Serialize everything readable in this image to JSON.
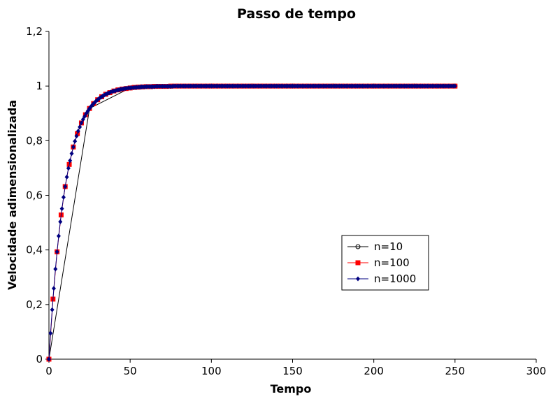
{
  "chart_data": {
    "type": "line",
    "title": "Passo de tempo",
    "xlabel": "Tempo",
    "ylabel": "Velocidade adimensionalizada",
    "xlim": [
      0,
      300
    ],
    "ylim": [
      0,
      1.2
    ],
    "xticks": [
      0,
      50,
      100,
      150,
      200,
      250,
      300
    ],
    "xtick_labels": [
      "0",
      "50",
      "100",
      "150",
      "200",
      "250",
      "300"
    ],
    "yticks": [
      0,
      0.2,
      0.4,
      0.6,
      0.8,
      1.0,
      1.2
    ],
    "ytick_labels": [
      "0",
      "0,2",
      "0,4",
      "0,6",
      "0,8",
      "1",
      "1,2"
    ],
    "grid": false,
    "legend_position": "center-right",
    "series": [
      {
        "name": "n=10",
        "color": "#000000",
        "marker": "circle-open",
        "x": [
          0,
          25,
          50,
          75,
          100,
          125,
          150,
          175,
          200,
          225,
          250
        ],
        "y": [
          0,
          0.918,
          0.993,
          0.999,
          1.0,
          1.0,
          1.0,
          1.0,
          1.0,
          1.0,
          1.0
        ]
      },
      {
        "name": "n=100",
        "color": "#ff0000",
        "marker": "square-filled",
        "x": [
          0,
          2.5,
          5,
          7.5,
          10,
          12.5,
          15,
          17.5,
          20,
          22.5,
          25,
          27.5,
          30,
          32.5,
          35,
          37.5,
          40,
          42.5,
          45,
          47.5,
          50,
          52.5,
          55,
          57.5,
          60,
          62.5,
          65,
          67.5,
          70,
          72.5,
          75,
          77.5,
          80,
          82.5,
          85,
          87.5,
          90,
          92.5,
          95,
          97.5,
          100,
          102.5,
          105,
          107.5,
          110,
          112.5,
          115,
          117.5,
          120,
          122.5,
          125,
          127.5,
          130,
          132.5,
          135,
          137.5,
          140,
          142.5,
          145,
          147.5,
          150,
          152.5,
          155,
          157.5,
          160,
          162.5,
          165,
          167.5,
          170,
          172.5,
          175,
          177.5,
          180,
          182.5,
          185,
          187.5,
          190,
          192.5,
          195,
          197.5,
          200,
          202.5,
          205,
          207.5,
          210,
          212.5,
          215,
          217.5,
          220,
          222.5,
          225,
          227.5,
          230,
          232.5,
          235,
          237.5,
          240,
          242.5,
          245,
          247.5,
          250
        ],
        "y": [
          0,
          0.22,
          0.393,
          0.528,
          0.632,
          0.713,
          0.777,
          0.826,
          0.865,
          0.895,
          0.918,
          0.936,
          0.95,
          0.961,
          0.97,
          0.976,
          0.982,
          0.986,
          0.989,
          0.991,
          0.993,
          0.995,
          0.996,
          0.997,
          0.998,
          0.998,
          0.999,
          0.999,
          0.999,
          0.999,
          1.0,
          1.0,
          1.0,
          1.0,
          1.0,
          1.0,
          1.0,
          1.0,
          1.0,
          1.0,
          1.0,
          1.0,
          1.0,
          1.0,
          1.0,
          1.0,
          1.0,
          1.0,
          1.0,
          1.0,
          1.0,
          1.0,
          1.0,
          1.0,
          1.0,
          1.0,
          1.0,
          1.0,
          1.0,
          1.0,
          1.0,
          1.0,
          1.0,
          1.0,
          1.0,
          1.0,
          1.0,
          1.0,
          1.0,
          1.0,
          1.0,
          1.0,
          1.0,
          1.0,
          1.0,
          1.0,
          1.0,
          1.0,
          1.0,
          1.0,
          1.0,
          1.0,
          1.0,
          1.0,
          1.0,
          1.0,
          1.0,
          1.0,
          1.0,
          1.0,
          1.0,
          1.0,
          1.0,
          1.0,
          1.0,
          1.0,
          1.0,
          1.0,
          1.0,
          1.0,
          1.0
        ]
      },
      {
        "name": "n=1000",
        "color": "#000080",
        "marker": "diamond-filled",
        "x": [
          0,
          1,
          2,
          3,
          4,
          5,
          6,
          7,
          8,
          9,
          10,
          11,
          12,
          13,
          14,
          15,
          16,
          17,
          18,
          19,
          20,
          21,
          22,
          23,
          24,
          25,
          26,
          27,
          28,
          29,
          30,
          31,
          32,
          33,
          34,
          35,
          36,
          37,
          38,
          39,
          40,
          41,
          42,
          43,
          44,
          45,
          46,
          47,
          48,
          49,
          50,
          51,
          52,
          53,
          54,
          55,
          56,
          57,
          58,
          59,
          60,
          61,
          62,
          63,
          64,
          65,
          66,
          67,
          68,
          69,
          70,
          71,
          72,
          73,
          74,
          75,
          76,
          77,
          78,
          79,
          80,
          81,
          82,
          83,
          84,
          85,
          86,
          87,
          88,
          89,
          90,
          91,
          92,
          93,
          94,
          95,
          96,
          97,
          98,
          99,
          100,
          101,
          102,
          103,
          104,
          105,
          106,
          107,
          108,
          109,
          110,
          111,
          112,
          113,
          114,
          115,
          116,
          117,
          118,
          119,
          120,
          121,
          122,
          123,
          124,
          125,
          126,
          127,
          128,
          129,
          130,
          131,
          132,
          133,
          134,
          135,
          136,
          137,
          138,
          139,
          140,
          141,
          142,
          143,
          144,
          145,
          146,
          147,
          148,
          149,
          150,
          151,
          152,
          153,
          154,
          155,
          156,
          157,
          158,
          159,
          160,
          161,
          162,
          163,
          164,
          165,
          166,
          167,
          168,
          169,
          170,
          171,
          172,
          173,
          174,
          175,
          176,
          177,
          178,
          179,
          180,
          181,
          182,
          183,
          184,
          185,
          186,
          187,
          188,
          189,
          190,
          191,
          192,
          193,
          194,
          195,
          196,
          197,
          198,
          199,
          200,
          201,
          202,
          203,
          204,
          205,
          206,
          207,
          208,
          209,
          210,
          211,
          212,
          213,
          214,
          215,
          216,
          217,
          218,
          219,
          220,
          221,
          222,
          223,
          224,
          225,
          226,
          227,
          228,
          229,
          230,
          231,
          232,
          233,
          234,
          235,
          236,
          237,
          238,
          239,
          240,
          241,
          242,
          243,
          244,
          245,
          246,
          247,
          248,
          249,
          250
        ],
        "y": [
          0,
          0.095,
          0.181,
          0.259,
          0.33,
          0.393,
          0.451,
          0.503,
          0.551,
          0.593,
          0.632,
          0.667,
          0.699,
          0.727,
          0.753,
          0.777,
          0.798,
          0.817,
          0.835,
          0.85,
          0.865,
          0.878,
          0.889,
          0.9,
          0.909,
          0.918,
          0.926,
          0.933,
          0.939,
          0.945,
          0.95,
          0.955,
          0.959,
          0.963,
          0.967,
          0.97,
          0.973,
          0.975,
          0.978,
          0.98,
          0.982,
          0.983,
          0.985,
          0.986,
          0.988,
          0.989,
          0.99,
          0.991,
          0.992,
          0.993,
          0.993,
          0.994,
          0.994,
          0.995,
          0.995,
          0.996,
          0.996,
          0.997,
          0.997,
          0.997,
          0.998,
          0.998,
          0.998,
          0.998,
          0.998,
          0.998,
          0.999,
          0.999,
          0.999,
          0.999,
          0.999,
          0.999,
          0.999,
          0.999,
          0.999,
          0.999,
          0.999,
          1.0,
          1.0,
          1.0,
          1.0,
          1.0,
          1.0,
          1.0,
          1.0,
          1.0,
          1.0,
          1.0,
          1.0,
          1.0,
          1.0,
          1.0,
          1.0,
          1.0,
          1.0,
          1.0,
          1.0,
          1.0,
          1.0,
          1.0,
          1.0,
          1.0,
          1.0,
          1.0,
          1.0,
          1.0,
          1.0,
          1.0,
          1.0,
          1.0,
          1.0,
          1.0,
          1.0,
          1.0,
          1.0,
          1.0,
          1.0,
          1.0,
          1.0,
          1.0,
          1.0,
          1.0,
          1.0,
          1.0,
          1.0,
          1.0,
          1.0,
          1.0,
          1.0,
          1.0,
          1.0,
          1.0,
          1.0,
          1.0,
          1.0,
          1.0,
          1.0,
          1.0,
          1.0,
          1.0,
          1.0,
          1.0,
          1.0,
          1.0,
          1.0,
          1.0,
          1.0,
          1.0,
          1.0,
          1.0,
          1.0,
          1.0,
          1.0,
          1.0,
          1.0,
          1.0,
          1.0,
          1.0,
          1.0,
          1.0,
          1.0,
          1.0,
          1.0,
          1.0,
          1.0,
          1.0,
          1.0,
          1.0,
          1.0,
          1.0,
          1.0,
          1.0,
          1.0,
          1.0,
          1.0,
          1.0,
          1.0,
          1.0,
          1.0,
          1.0,
          1.0,
          1.0,
          1.0,
          1.0,
          1.0,
          1.0,
          1.0,
          1.0,
          1.0,
          1.0,
          1.0,
          1.0,
          1.0,
          1.0,
          1.0,
          1.0,
          1.0,
          1.0,
          1.0,
          1.0,
          1.0,
          1.0,
          1.0,
          1.0,
          1.0,
          1.0,
          1.0,
          1.0,
          1.0,
          1.0,
          1.0,
          1.0,
          1.0,
          1.0,
          1.0,
          1.0,
          1.0,
          1.0,
          1.0,
          1.0,
          1.0,
          1.0,
          1.0,
          1.0,
          1.0,
          1.0,
          1.0,
          1.0,
          1.0,
          1.0,
          1.0,
          1.0,
          1.0,
          1.0,
          1.0,
          1.0,
          1.0,
          1.0,
          1.0,
          1.0,
          1.0,
          1.0,
          1.0,
          1.0,
          1.0,
          1.0,
          1.0,
          1.0,
          1.0,
          1.0,
          1.0
        ]
      }
    ]
  }
}
